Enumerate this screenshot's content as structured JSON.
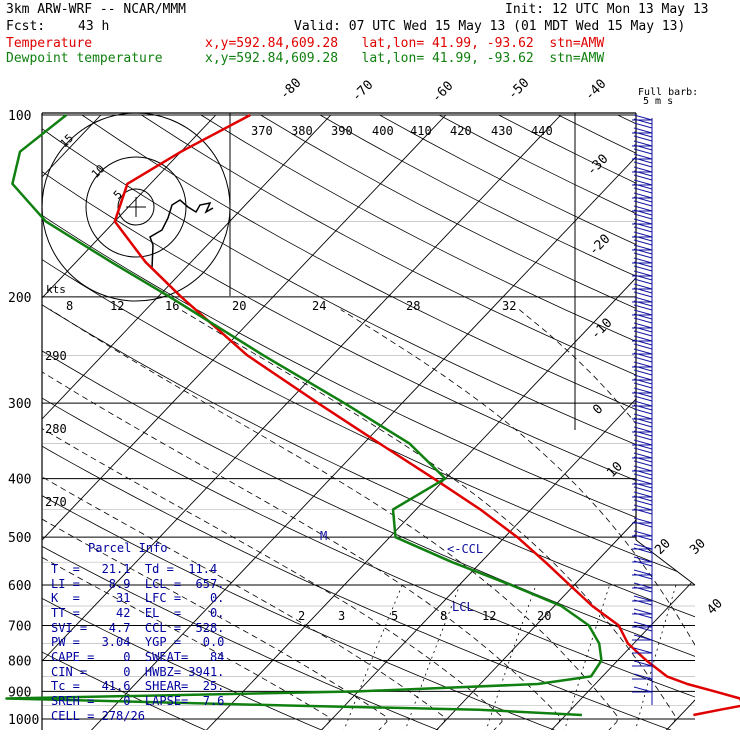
{
  "header": {
    "model": "3km ARW-WRF -- NCAR/MMM",
    "init": "Init: 12 UTC Mon 13 May 13",
    "fcst_label": "Fcst:",
    "fcst_value": "43 h",
    "valid": "Valid: 07 UTC Wed 15 May 13 (01 MDT Wed 15 May 13)",
    "temp_label": "Temperature",
    "temp_info": "x,y=592.84,609.28   lat,lon= 41.99, -93.62  stn=AMW",
    "dew_label": "Dewpoint temperature",
    "dew_info": "x,y=592.84,609.28   lat,lon= 41.99, -93.62  stn=AMW"
  },
  "colors": {
    "temperature": "#e00000",
    "dewpoint": "#108010",
    "parcel_text": "#0000a0",
    "wind_barbs": "#1010a0",
    "grid": "#000000"
  },
  "barb_legend": {
    "line1": "Full barb:",
    "line2": "5 m s"
  },
  "hodograph": {
    "units_label": "kts",
    "ring_labels": [
      "5",
      "10",
      "15"
    ]
  },
  "parcel_info": {
    "title": "Parcel Info",
    "rows": [
      "T  =   21.1  Td =  11.4",
      "LI =    8.9  LCL =  657.",
      "K  =     31  LFC =    0.",
      "TT =     42  EL  =    0.",
      "SVI =   4.7  CCL =  528.",
      "PW =   3.04  YGP =   0.0",
      "CAPE =    0  SWEAT=   84",
      "CIN =     0  HWBZ= 3941.",
      "Tc =   41.6  SHEAR=  25.",
      "SREH =    0  LAPSE=  7.6",
      "CELL = 278/26"
    ]
  },
  "chart_data": {
    "type": "line",
    "title": "",
    "xlabel": "",
    "ylabel": "",
    "pressure_ticks": [
      100,
      200,
      300,
      400,
      500,
      600,
      700,
      800,
      900,
      1000
    ],
    "isotherm_labels": [
      "-80",
      "-70",
      "-60",
      "-50",
      "-40",
      "-30",
      "-20",
      "-10",
      "0",
      "10",
      "20",
      "30",
      "40"
    ],
    "isotherm_values": [
      -80,
      -70,
      -60,
      -50,
      -40,
      -30,
      -20,
      -10,
      0,
      10,
      20,
      30,
      40
    ],
    "theta_labels": [
      "370",
      "380",
      "390",
      "400",
      "410",
      "420",
      "430",
      "440"
    ],
    "theta_side_labels": [
      "290",
      "280",
      "270"
    ],
    "mixing_ratio_labels": [
      "8",
      "12",
      "16",
      "20",
      "24",
      "28",
      "32"
    ],
    "mixing_ratio_low_labels": [
      "2",
      "3",
      "5",
      "8",
      "12",
      "20"
    ],
    "annotations": [
      "LCL",
      "<-CCL",
      "M"
    ],
    "series": [
      {
        "name": "Temperature",
        "pressure": [
          985,
          965,
          950,
          925,
          900,
          875,
          850,
          800,
          750,
          700,
          650,
          600,
          550,
          500,
          450,
          400,
          350,
          300,
          250,
          200,
          175,
          150,
          130,
          115,
          100
        ],
        "temperature": [
          21.1,
          23.0,
          24.6,
          23.8,
          21.0,
          18.0,
          15.6,
          12.5,
          9.5,
          7.2,
          3.3,
          -0.4,
          -4.4,
          -8.9,
          -14.4,
          -21.0,
          -28.6,
          -37.3,
          -47.4,
          -58.0,
          -64.0,
          -70.0,
          -72.0,
          -70.0,
          -67.0
        ]
      },
      {
        "name": "Dewpoint temperature",
        "pressure": [
          985,
          965,
          950,
          925,
          900,
          875,
          850,
          800,
          750,
          700,
          650,
          600,
          550,
          500,
          450,
          400,
          350,
          300,
          250,
          200,
          175,
          150,
          130,
          115,
          100
        ],
        "temperature": [
          11.4,
          2.0,
          -15.0,
          -40.0,
          -10.0,
          5.0,
          9.0,
          8.6,
          7.0,
          4.6,
          0.6,
          -5.5,
          -12.5,
          -19.5,
          -22.0,
          -20.0,
          -26.0,
          -35.0,
          -46.0,
          -59.0,
          -67.0,
          -76.0,
          -82.0,
          -84.0,
          -83.0
        ]
      }
    ]
  }
}
